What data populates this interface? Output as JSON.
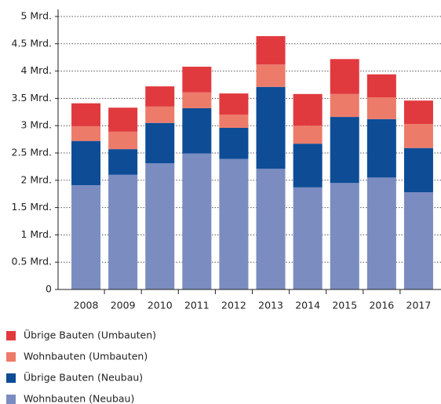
{
  "chart_data": {
    "type": "stacked_bar",
    "categories": [
      "2008",
      "2009",
      "2010",
      "2011",
      "2012",
      "2013",
      "2014",
      "2015",
      "2016",
      "2017"
    ],
    "series": [
      {
        "name": "Wohnbauten (Neubau)",
        "color": "#7b8cc0",
        "values": [
          1.91,
          2.1,
          2.31,
          2.49,
          2.39,
          2.21,
          1.87,
          1.95,
          2.05,
          1.78
        ]
      },
      {
        "name": "Übrige Bauten (Neubau)",
        "color": "#0e4c96",
        "values": [
          0.81,
          0.47,
          0.74,
          0.83,
          0.57,
          1.5,
          0.8,
          1.21,
          1.07,
          0.81
        ]
      },
      {
        "name": "Wohnbauten (Umbauten)",
        "color": "#ec7b6a",
        "values": [
          0.27,
          0.32,
          0.3,
          0.29,
          0.24,
          0.41,
          0.33,
          0.42,
          0.4,
          0.44
        ]
      },
      {
        "name": "Übrige Bauten (Umbauten)",
        "color": "#e03a3e",
        "values": [
          0.42,
          0.44,
          0.37,
          0.47,
          0.39,
          0.52,
          0.58,
          0.64,
          0.42,
          0.43
        ]
      }
    ],
    "ylim": [
      0,
      5
    ],
    "yticks": [
      0,
      {
        "value": 0.5,
        "label": "0.5 Mrd."
      },
      {
        "value": 1,
        "label": "1 Mrd."
      },
      {
        "value": 1.5,
        "label": "1.5 Mrd."
      },
      {
        "value": 2,
        "label": "2 Mrd."
      },
      {
        "value": 2.5,
        "label": "2.5 Mrd."
      },
      {
        "value": 3,
        "label": "3 Mrd."
      },
      {
        "value": 3.5,
        "label": "3.5 Mrd."
      },
      {
        "value": 4,
        "label": "4 Mrd."
      },
      {
        "value": 4.5,
        "label": "4.5 Mrd."
      },
      {
        "value": 5,
        "label": "5 Mrd."
      }
    ],
    "grid": true
  }
}
